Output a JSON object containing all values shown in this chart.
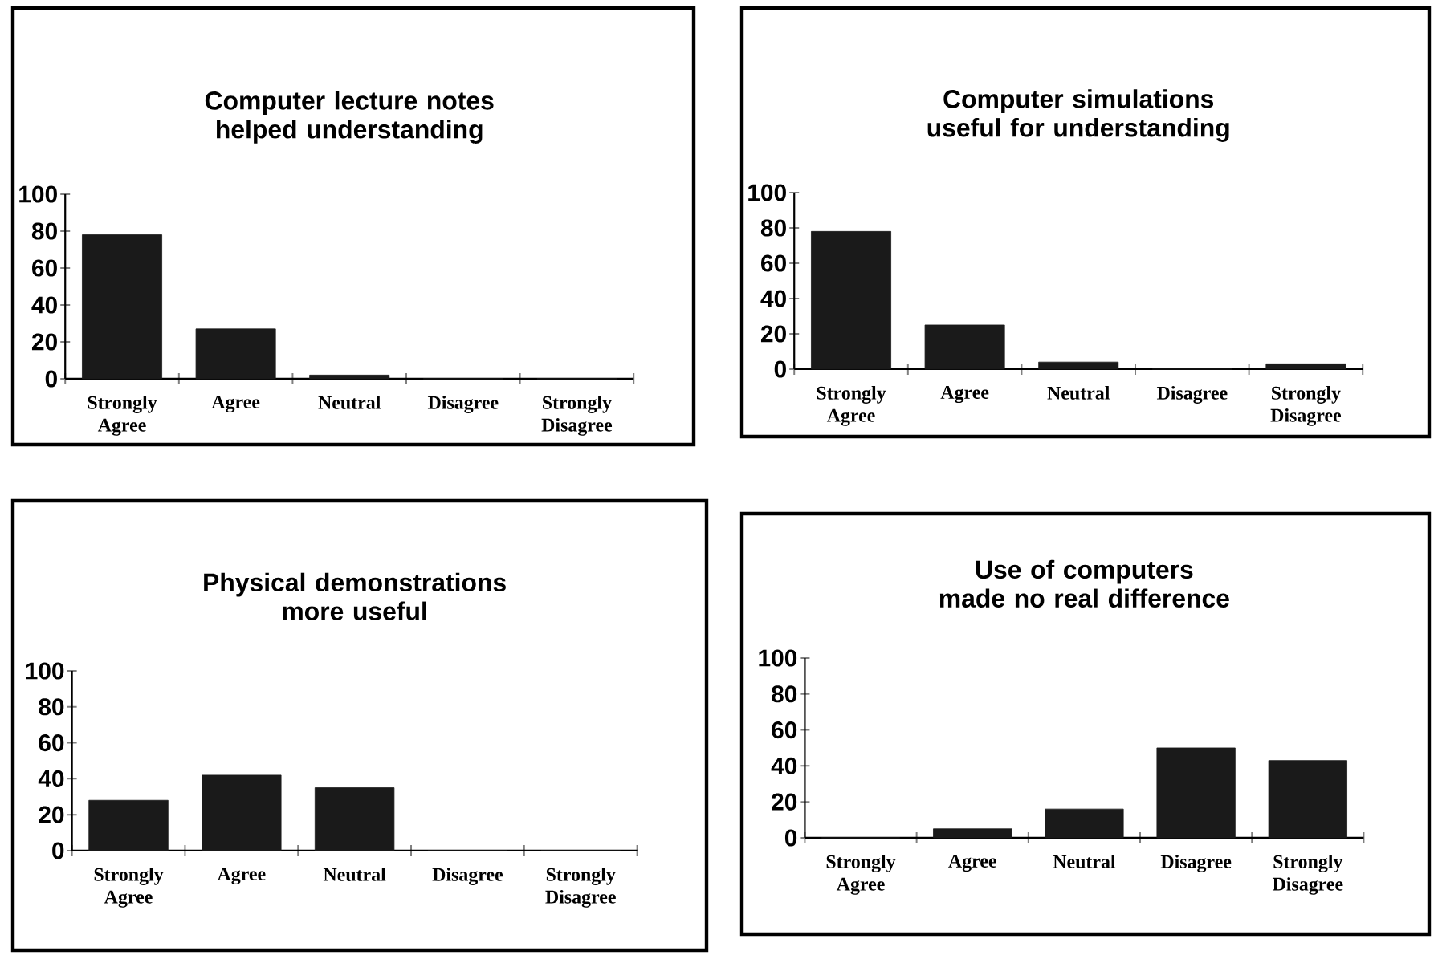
{
  "chart_data": [
    {
      "type": "bar",
      "title": "Computer lecture notes helped understanding",
      "categories": [
        "Strongly Agree",
        "Agree",
        "Neutral",
        "Disagree",
        "Strongly Disagree"
      ],
      "values": [
        78,
        27,
        2,
        0,
        0
      ],
      "color": "#1a1a1a",
      "ylim": [
        0,
        100
      ],
      "yticks": [
        0,
        20,
        40,
        60,
        80,
        100
      ]
    },
    {
      "type": "bar",
      "title": "Computer simulations useful for understanding",
      "categories": [
        "Strongly Agree",
        "Agree",
        "Neutral",
        "Disagree",
        "Strongly Disagree"
      ],
      "values": [
        78,
        25,
        4,
        0,
        3
      ],
      "color": "#1a1a1a",
      "ylim": [
        0,
        100
      ],
      "yticks": [
        0,
        20,
        40,
        60,
        80,
        100
      ]
    },
    {
      "type": "bar",
      "title": "Physical demonstrations more useful",
      "categories": [
        "Strongly Agree",
        "Agree",
        "Neutral",
        "Disagree",
        "Strongly Disagree"
      ],
      "values": [
        28,
        42,
        35,
        0,
        0
      ],
      "color": "#1a1a1a",
      "ylim": [
        0,
        100
      ],
      "yticks": [
        0,
        20,
        40,
        60,
        80,
        100
      ]
    },
    {
      "type": "bar",
      "title": "Use of computers made no real difference",
      "categories": [
        "Strongly Agree",
        "Agree",
        "Neutral",
        "Disagree",
        "Strongly Disagree"
      ],
      "values": [
        0,
        5,
        16,
        50,
        43
      ],
      "color": "#1a1a1a",
      "ylim": [
        0,
        100
      ],
      "yticks": [
        0,
        20,
        40,
        60,
        80,
        100
      ]
    }
  ]
}
